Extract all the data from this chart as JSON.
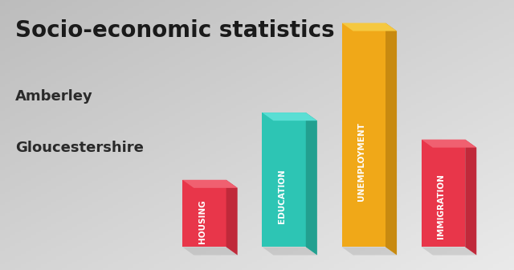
{
  "title": "Socio-economic statistics",
  "subtitle1": "Amberley",
  "subtitle2": "Gloucestershire",
  "categories": [
    "HOUSING",
    "EDUCATION",
    "UNEMPLOYMENT",
    "IMMIGRATION"
  ],
  "values": [
    0.3,
    0.6,
    1.0,
    0.48
  ],
  "bar_colors_front": [
    "#e8364a",
    "#2dc5b4",
    "#f0a818",
    "#e8364a"
  ],
  "bar_colors_side": [
    "#c0293a",
    "#22a090",
    "#c88a10",
    "#c0293a"
  ],
  "bar_colors_top": [
    "#f06070",
    "#5aded4",
    "#f5c840",
    "#f06070"
  ],
  "background_top_left": "#c8c8c8",
  "background_bottom_right": "#e8e8e8",
  "title_color": "#1a1a1a",
  "subtitle_color": "#2a2a2a",
  "title_fontsize": 20,
  "subtitle_fontsize": 13,
  "label_fontsize": 7.5
}
